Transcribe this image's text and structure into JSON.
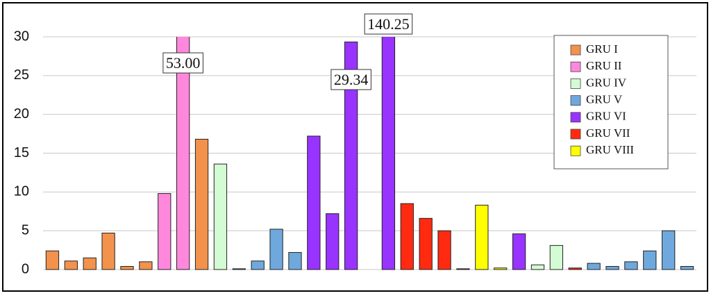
{
  "chart_data": {
    "type": "bar",
    "categories": [
      null,
      null,
      null,
      null,
      null,
      null,
      null,
      null,
      null,
      null,
      null,
      null,
      null,
      null,
      null,
      null,
      null,
      null,
      null,
      null,
      null,
      null,
      null,
      null,
      null,
      null,
      null,
      null,
      null,
      null,
      null,
      null,
      null,
      null,
      null
    ],
    "series": [
      {
        "name": "GRU I",
        "color": "#f2924c",
        "values": [
          2.4,
          1.1,
          1.5,
          4.7,
          0.4,
          1.0,
          null,
          null,
          16.8,
          null,
          null,
          null,
          null,
          null,
          null,
          null,
          null,
          null,
          null,
          null,
          null,
          null,
          null,
          null,
          null,
          null,
          null,
          null,
          null,
          null,
          null,
          null,
          null,
          null,
          null
        ]
      },
      {
        "name": "GRU II",
        "color": "#ff88dd",
        "values": [
          null,
          null,
          null,
          null,
          null,
          null,
          9.8,
          53.0,
          null,
          null,
          null,
          null,
          null,
          null,
          null,
          null,
          null,
          null,
          null,
          null,
          null,
          null,
          null,
          null,
          null,
          null,
          null,
          null,
          null,
          null,
          null,
          null,
          null,
          null,
          null
        ],
        "value_labels": [
          null,
          null,
          null,
          null,
          null,
          null,
          null,
          "53.00",
          null,
          null,
          null,
          null,
          null,
          null,
          null,
          null,
          null,
          null,
          null,
          null,
          null,
          null,
          null,
          null,
          null,
          null,
          null,
          null,
          null,
          null,
          null,
          null,
          null,
          null,
          null
        ]
      },
      {
        "name": "GRU IV",
        "color": "#d4fcd4",
        "values": [
          null,
          null,
          null,
          null,
          null,
          null,
          null,
          null,
          null,
          13.6,
          null,
          null,
          null,
          null,
          null,
          null,
          null,
          null,
          null,
          null,
          null,
          null,
          null,
          null,
          null,
          null,
          0.6,
          3.1,
          null,
          null,
          null,
          null,
          null,
          null,
          null
        ]
      },
      {
        "name": "GRU V",
        "color": "#6fa8dc",
        "values": [
          null,
          null,
          null,
          null,
          null,
          null,
          null,
          null,
          null,
          null,
          0.1,
          1.1,
          5.2,
          2.2,
          null,
          null,
          null,
          null,
          null,
          null,
          null,
          null,
          null,
          null,
          null,
          null,
          null,
          null,
          null,
          0.8,
          0.4,
          1.0,
          2.4,
          5.0,
          0.4
        ]
      },
      {
        "name": "GRU VI",
        "color": "#9933ff",
        "values": [
          null,
          null,
          null,
          null,
          null,
          null,
          null,
          null,
          null,
          null,
          null,
          null,
          null,
          null,
          17.2,
          7.2,
          29.34,
          null,
          140.25,
          null,
          null,
          null,
          null,
          null,
          null,
          4.6,
          null,
          null,
          null,
          null,
          null,
          null,
          null,
          null,
          null
        ],
        "value_labels": [
          null,
          null,
          null,
          null,
          null,
          null,
          null,
          null,
          null,
          null,
          null,
          null,
          null,
          null,
          null,
          null,
          "29.34",
          null,
          "140.25",
          null,
          null,
          null,
          null,
          null,
          null,
          null,
          null,
          null,
          null,
          null,
          null,
          null,
          null,
          null,
          null
        ]
      },
      {
        "name": "GRU VII",
        "color": "#ff2a10",
        "values": [
          null,
          null,
          null,
          null,
          null,
          null,
          null,
          null,
          null,
          null,
          null,
          null,
          null,
          null,
          null,
          null,
          null,
          null,
          null,
          8.5,
          6.6,
          5.0,
          0.1,
          null,
          null,
          null,
          null,
          null,
          0.2,
          null,
          null,
          null,
          null,
          null,
          null
        ]
      },
      {
        "name": "GRU VIII",
        "color": "#ffff00",
        "values": [
          null,
          null,
          null,
          null,
          null,
          null,
          null,
          null,
          null,
          null,
          null,
          null,
          null,
          null,
          null,
          null,
          null,
          null,
          null,
          null,
          null,
          null,
          null,
          8.3,
          0.2,
          null,
          null,
          null,
          null,
          null,
          null,
          null,
          null,
          null,
          null
        ]
      }
    ],
    "ylim": [
      0,
      30
    ],
    "yticks": [
      0,
      5,
      10,
      15,
      20,
      25,
      30
    ],
    "grid": true,
    "legend": "upper right"
  }
}
